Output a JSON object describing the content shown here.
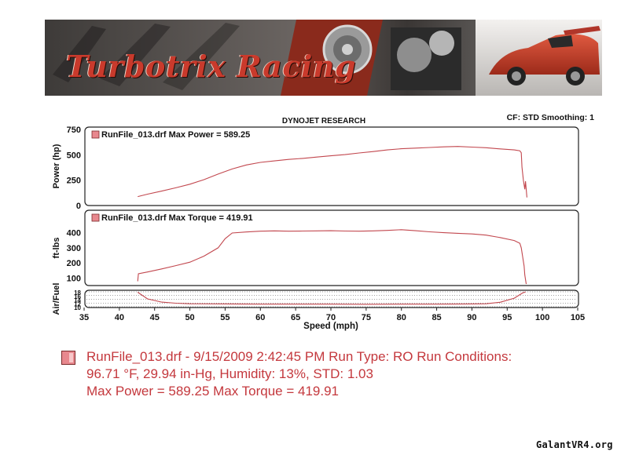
{
  "banner": {
    "brand": "Turbotrix Racing"
  },
  "chart_data": {
    "type": "line",
    "title": "DYNOJET RESEARCH",
    "header_right": "CF: STD  Smoothing: 1",
    "xlabel": "Speed (mph)",
    "xlim": [
      35,
      105
    ],
    "xticks": [
      35,
      40,
      45,
      50,
      55,
      60,
      65,
      70,
      75,
      80,
      85,
      90,
      95,
      100,
      105
    ],
    "line_color": "#c2474e",
    "panels": [
      {
        "name": "power",
        "ylabel": "Power (hp)",
        "ylim": [
          0,
          750
        ],
        "yticks": [
          0,
          250,
          500,
          750
        ],
        "legend": "RunFile_013.drf Max Power = 589.25",
        "series": [
          {
            "name": "RunFile_013.drf",
            "x": [
              42.6,
              44,
              46,
              48,
              50,
              52,
              54,
              56,
              58,
              60,
              62,
              64,
              66,
              68,
              70,
              72,
              74,
              76,
              78,
              80,
              82,
              84,
              86,
              88,
              90,
              92,
              94,
              96,
              96.8,
              97.0,
              97.1,
              97.3,
              97.5,
              97.6,
              97.8
            ],
            "y": [
              88,
              112,
              142,
              175,
              210,
              255,
              310,
              360,
              400,
              425,
              440,
              455,
              465,
              478,
              490,
              502,
              518,
              532,
              548,
              560,
              566,
              572,
              578,
              582,
              576,
              570,
              558,
              548,
              540,
              520,
              380,
              250,
              160,
              240,
              80
            ]
          }
        ]
      },
      {
        "name": "torque",
        "ylabel": "ft-lbs",
        "ylim": [
          50,
          450
        ],
        "yticks": [
          100,
          200,
          300,
          400
        ],
        "legend": "RunFile_013.drf Max Torque = 419.91",
        "series": [
          {
            "name": "RunFile_013.drf",
            "x": [
              42.6,
              42.7,
              44,
              46,
              48,
              50,
              52,
              54,
              55,
              56,
              58,
              60,
              62,
              64,
              66,
              68,
              70,
              72,
              74,
              76,
              78,
              80,
              82,
              84,
              86,
              88,
              90,
              92,
              94,
              96,
              96.8,
              97.0,
              97.2,
              97.4,
              97.5,
              97.7
            ],
            "y": [
              78,
              128,
              140,
              160,
              182,
              205,
              245,
              300,
              360,
              398,
              405,
              410,
              412,
              410,
              411,
              412,
              413,
              411,
              410,
              412,
              415,
              419.9,
              413,
              406,
              400,
              396,
              392,
              384,
              368,
              348,
              330,
              300,
              240,
              180,
              120,
              60
            ]
          }
        ]
      },
      {
        "name": "afr",
        "ylabel": "Air/Fuel",
        "ylim": [
          10,
          18
        ],
        "yticks": [
          10,
          12,
          14,
          16,
          18
        ],
        "series": [
          {
            "name": "RunFile_013.drf",
            "x": [
              42.6,
              44,
              46,
              48,
              50,
              55,
              60,
              65,
              70,
              75,
              80,
              85,
              90,
              92,
              94,
              96,
              96.8,
              97.2,
              97.6
            ],
            "y": [
              17.8,
              14.2,
              12.5,
              11.9,
              11.6,
              11.5,
              11.4,
              11.4,
              11.4,
              11.3,
              11.4,
              11.4,
              11.5,
              11.6,
              12.4,
              14.6,
              16.5,
              17.4,
              17.9
            ]
          }
        ]
      }
    ]
  },
  "legend": {
    "line1": "RunFile_013.drf - 9/15/2009 2:42:45 PM  Run Type: RO  Run Conditions:",
    "line2": "96.71 °F, 29.94 in-Hg,  Humidity:  13%, STD: 1.03",
    "line3": "Max Power = 589.25  Max Torque = 419.91"
  },
  "watermark": "GalantVR4.org"
}
